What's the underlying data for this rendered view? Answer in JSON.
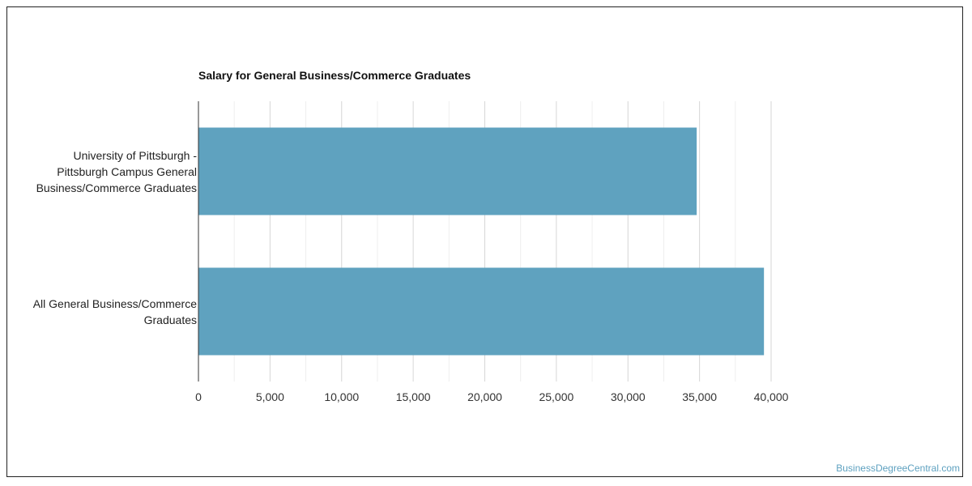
{
  "watermark": "BusinessDegreeCentral.com",
  "colors": {
    "bar": "#5fa2bf",
    "grid": "#e0e0e0",
    "axis": "#333333"
  },
  "chart_data": {
    "type": "bar",
    "orientation": "horizontal",
    "title": "Salary for General Business/Commerce Graduates",
    "categories": [
      "University of Pittsburgh - Pittsburgh Campus General Business/Commerce Graduates",
      "All General Business/Commerce Graduates"
    ],
    "category_lines": [
      [
        "University of Pittsburgh -",
        "Pittsburgh Campus General",
        "Business/Commerce Graduates"
      ],
      [
        "All General Business/Commerce",
        "Graduates"
      ]
    ],
    "values": [
      34800,
      39500
    ],
    "xlim": [
      0,
      40000
    ],
    "xticks": [
      0,
      5000,
      10000,
      15000,
      20000,
      25000,
      30000,
      35000,
      40000
    ],
    "xtick_labels": [
      "0",
      "5,000",
      "10,000",
      "15,000",
      "20,000",
      "25,000",
      "30,000",
      "35,000",
      "40,000"
    ],
    "grid": true,
    "legend": "none"
  }
}
